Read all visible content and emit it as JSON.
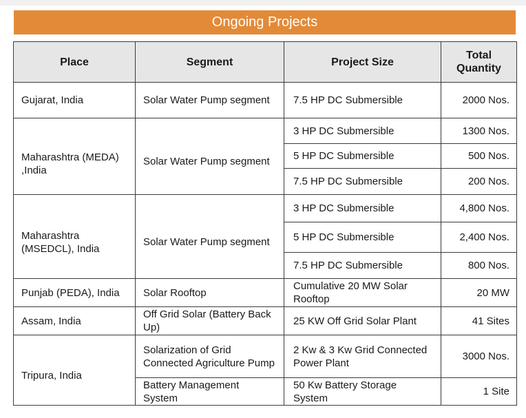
{
  "title": "Ongoing Projects",
  "colors": {
    "banner": "#e38a38",
    "header_bg": "#e6e6e6",
    "border": "#3a3a3a"
  },
  "columns": [
    "Place",
    "Segment",
    "Project Size",
    "Total Quantity"
  ],
  "rows": {
    "gujarat": {
      "place": "Gujarat, India",
      "segment": "Solar Water Pump segment",
      "items": [
        {
          "size": "7.5 HP DC Submersible",
          "qty": "2000 Nos."
        }
      ]
    },
    "meda": {
      "place": "Maharashtra (MEDA) ,India",
      "segment": "Solar Water Pump segment",
      "items": [
        {
          "size": "3 HP DC Submersible",
          "qty": "1300 Nos."
        },
        {
          "size": "5 HP DC Submersible",
          "qty": "500 Nos."
        },
        {
          "size": "7.5 HP DC Submersible",
          "qty": "200 Nos."
        }
      ]
    },
    "msedcl": {
      "place": "Maharashtra (MSEDCL), India",
      "segment": "Solar Water Pump segment",
      "items": [
        {
          "size": "3 HP DC Submersible",
          "qty": "4,800 Nos."
        },
        {
          "size": "5 HP DC Submersible",
          "qty": "2,400 Nos."
        },
        {
          "size": "7.5 HP DC Submersible",
          "qty": "800 Nos."
        }
      ]
    },
    "punjab": {
      "place": "Punjab (PEDA), India",
      "segment": "Solar Rooftop",
      "items": [
        {
          "size": "Cumulative 20 MW Solar Rooftop",
          "qty": "20 MW"
        }
      ]
    },
    "assam": {
      "place": "Assam, India",
      "segment": "Off Grid Solar (Battery Back Up)",
      "items": [
        {
          "size": "25 KW Off Grid Solar Plant",
          "qty": "41 Sites"
        }
      ]
    },
    "tripura": {
      "place": "Tripura, India",
      "segments": [
        {
          "segment": "Solarization of Grid Connected Agriculture Pump",
          "size": "2 Kw & 3 Kw Grid Connected Power Plant",
          "qty": "3000 Nos."
        },
        {
          "segment": "Battery Management System",
          "size": "50 Kw Battery Storage System",
          "qty": "1 Site"
        }
      ]
    }
  }
}
